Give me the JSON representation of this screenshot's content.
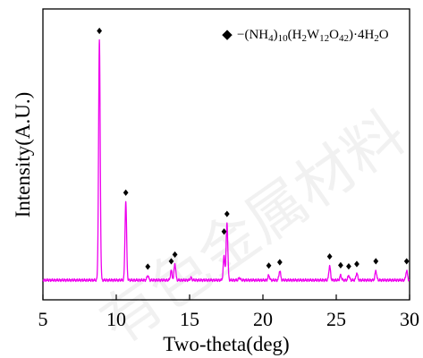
{
  "chart_data": {
    "type": "line",
    "xlabel": "Two-theta(deg)",
    "ylabel": "Intensity(A.U.)",
    "xlim": [
      5,
      30
    ],
    "x_ticks": [
      5,
      10,
      15,
      20,
      25,
      30
    ],
    "y_ticks_shown": false,
    "grid": false,
    "watermark": "有色金属材料",
    "legend": {
      "position": "top-right",
      "marker": "◆",
      "prefix": "−(NH",
      "parts": [
        {
          "text": "−(NH",
          "sub": false
        },
        {
          "text": "4",
          "sub": true
        },
        {
          "text": ")",
          "sub": false
        },
        {
          "text": "10",
          "sub": true
        },
        {
          "text": "(H",
          "sub": false
        },
        {
          "text": "2",
          "sub": true
        },
        {
          "text": "W",
          "sub": false
        },
        {
          "text": "12",
          "sub": true
        },
        {
          "text": "O",
          "sub": false
        },
        {
          "text": "42",
          "sub": true
        },
        {
          "text": ")·4H",
          "sub": false
        },
        {
          "text": "2",
          "sub": true
        },
        {
          "text": "O",
          "sub": false
        }
      ]
    },
    "series": [
      {
        "name": "(NH4)10(H2W12O42)·4H2O",
        "color": "#ee00ee",
        "baseline": 3,
        "peaks": [
          {
            "x": 8.85,
            "height": 100
          },
          {
            "x": 10.65,
            "height": 33
          },
          {
            "x": 12.15,
            "height": 2
          },
          {
            "x": 13.75,
            "height": 4
          },
          {
            "x": 14.0,
            "height": 7
          },
          {
            "x": 15.1,
            "height": 1
          },
          {
            "x": 17.35,
            "height": 10
          },
          {
            "x": 17.55,
            "height": 24
          },
          {
            "x": 18.4,
            "height": 1
          },
          {
            "x": 20.4,
            "height": 2
          },
          {
            "x": 21.15,
            "height": 4
          },
          {
            "x": 24.55,
            "height": 6
          },
          {
            "x": 25.3,
            "height": 2
          },
          {
            "x": 25.85,
            "height": 2
          },
          {
            "x": 26.4,
            "height": 3
          },
          {
            "x": 27.7,
            "height": 4
          },
          {
            "x": 29.8,
            "height": 4
          }
        ],
        "marker_positions": [
          8.85,
          10.65,
          12.15,
          13.75,
          14.0,
          17.35,
          17.55,
          20.4,
          21.15,
          24.55,
          25.3,
          25.85,
          26.4,
          27.7,
          29.8
        ]
      }
    ]
  }
}
